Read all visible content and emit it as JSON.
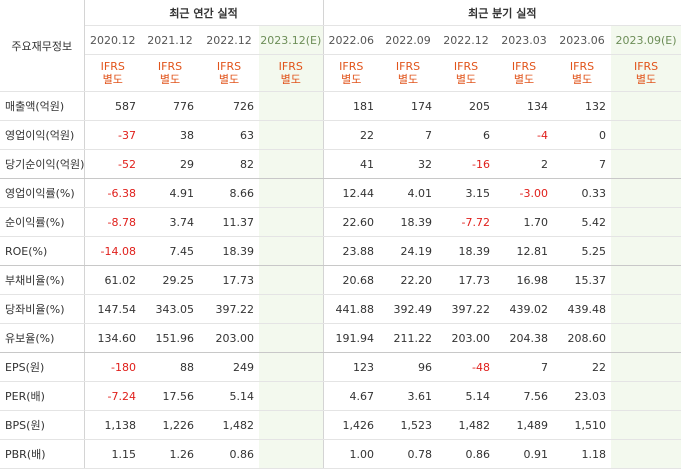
{
  "corner_label": "주요재무정보",
  "annual_group": "최근 연간 실적",
  "quarter_group": "최근 분기 실적",
  "periods": [
    {
      "label": "2020.12",
      "est": false
    },
    {
      "label": "2021.12",
      "est": false
    },
    {
      "label": "2022.12",
      "est": false
    },
    {
      "label": "2023.12(E)",
      "est": true
    },
    {
      "label": "2022.06",
      "est": false
    },
    {
      "label": "2022.09",
      "est": false
    },
    {
      "label": "2022.12",
      "est": false
    },
    {
      "label": "2023.03",
      "est": false
    },
    {
      "label": "2023.06",
      "est": false
    },
    {
      "label": "2023.09(E)",
      "est": true
    }
  ],
  "ifrs_line1": "IFRS",
  "ifrs_line2": "별도",
  "rows": [
    {
      "label": "매출액(억원)",
      "values": [
        "587",
        "776",
        "726",
        "",
        "181",
        "174",
        "205",
        "134",
        "132",
        ""
      ]
    },
    {
      "label": "영업이익(억원)",
      "values": [
        "-37",
        "38",
        "63",
        "",
        "22",
        "7",
        "6",
        "-4",
        "0",
        ""
      ]
    },
    {
      "label": "당기순이익(억원)",
      "values": [
        "-52",
        "29",
        "82",
        "",
        "41",
        "32",
        "-16",
        "2",
        "7",
        ""
      ]
    },
    {
      "label": "영업이익률(%)",
      "values": [
        "-6.38",
        "4.91",
        "8.66",
        "",
        "12.44",
        "4.01",
        "3.15",
        "-3.00",
        "0.33",
        ""
      ]
    },
    {
      "label": "순이익률(%)",
      "values": [
        "-8.78",
        "3.74",
        "11.37",
        "",
        "22.60",
        "18.39",
        "-7.72",
        "1.70",
        "5.42",
        ""
      ]
    },
    {
      "label": "ROE(%)",
      "values": [
        "-14.08",
        "7.45",
        "18.39",
        "",
        "23.88",
        "24.19",
        "18.39",
        "12.81",
        "5.25",
        ""
      ]
    },
    {
      "label": "부채비율(%)",
      "values": [
        "61.02",
        "29.25",
        "17.73",
        "",
        "20.68",
        "22.20",
        "17.73",
        "16.98",
        "15.37",
        ""
      ]
    },
    {
      "label": "당좌비율(%)",
      "values": [
        "147.54",
        "343.05",
        "397.22",
        "",
        "441.88",
        "392.49",
        "397.22",
        "439.02",
        "439.48",
        ""
      ]
    },
    {
      "label": "유보율(%)",
      "values": [
        "134.60",
        "151.96",
        "203.00",
        "",
        "191.94",
        "211.22",
        "203.00",
        "204.38",
        "208.60",
        ""
      ]
    },
    {
      "label": "EPS(원)",
      "values": [
        "-180",
        "88",
        "249",
        "",
        "123",
        "96",
        "-48",
        "7",
        "22",
        ""
      ]
    },
    {
      "label": "PER(배)",
      "values": [
        "-7.24",
        "17.56",
        "5.14",
        "",
        "4.67",
        "3.61",
        "5.14",
        "7.56",
        "23.03",
        ""
      ]
    },
    {
      "label": "BPS(원)",
      "values": [
        "1,138",
        "1,226",
        "1,482",
        "",
        "1,426",
        "1,523",
        "1,482",
        "1,489",
        "1,510",
        ""
      ]
    },
    {
      "label": "PBR(배)",
      "values": [
        "1.15",
        "1.26",
        "0.86",
        "",
        "1.00",
        "0.78",
        "0.86",
        "0.91",
        "1.18",
        ""
      ]
    }
  ],
  "colors": {
    "ifrs_text": "#e1541b",
    "negative_text": "#e0201c",
    "estimate_bg": "#f3f9ee",
    "estimate_header_text": "#6d8e58",
    "border": "#e4e4e4"
  }
}
